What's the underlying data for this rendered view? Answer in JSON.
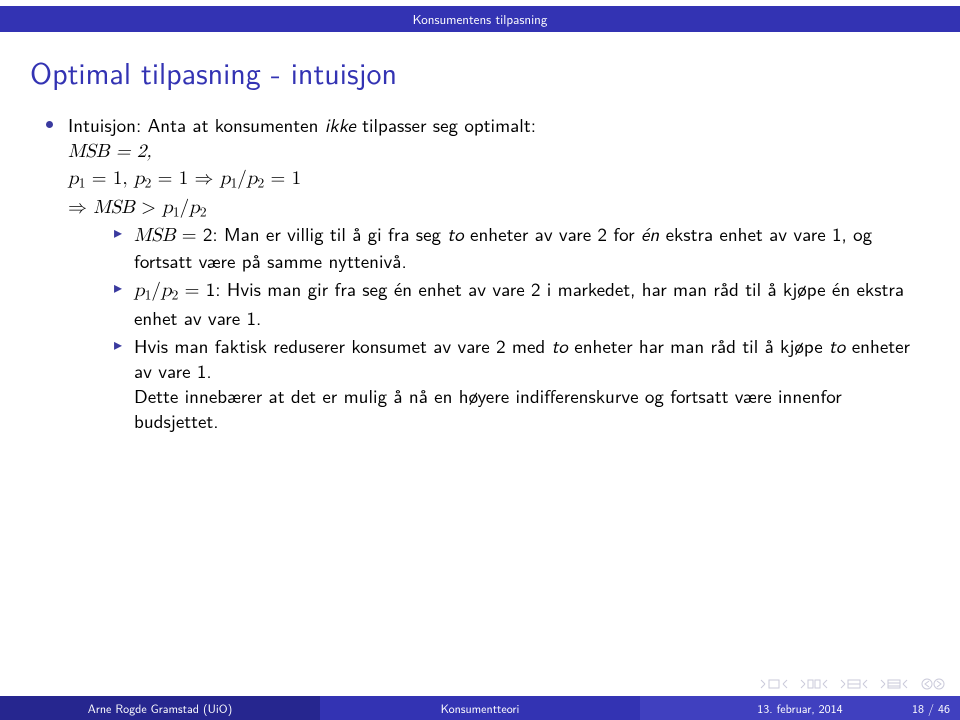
{
  "colors": {
    "structure": "#3333b3",
    "footer_left": "#26268f",
    "footer_mid": "#3333b3",
    "footer_right": "#4040bf",
    "bullet": "#3a3a9f",
    "nav_icon": "#c3c3d4",
    "nav_circle": "#c9c9c9"
  },
  "header": {
    "section": "Konsumentens tilpasning"
  },
  "title": "Optimal tilpasning - intuisjon",
  "bullets": {
    "b1_pre": "Intuisjon: Anta at konsumenten ",
    "b1_em": "ikke",
    "b1_post": " tilpasser seg optimalt:",
    "eq1": "MSB = 2,",
    "eq2_a": "p",
    "eq2_b": " = 1, ",
    "eq2_c": "p",
    "eq2_d": " = 1 ⇒ ",
    "eq2_e": "p",
    "eq2_f": "/",
    "eq2_g": "p",
    "eq2_h": " = 1",
    "eq3_a": "⇒ ",
    "eq3_b": "MSB",
    "eq3_c": " > ",
    "eq3_d": "p",
    "eq3_e": "/",
    "eq3_f": "p",
    "s1_a": "MSB",
    "s1_b": " = 2: Man er villig til å gi fra seg ",
    "s1_em1": "to",
    "s1_c": " enheter av vare 2 for ",
    "s1_em2": "én",
    "s1_d": " ekstra enhet av vare 1, og fortsatt være på samme nyttenivå.",
    "s2_a": "p",
    "s2_b": "/",
    "s2_c": "p",
    "s2_d": " = 1: Hvis man gir fra seg én enhet av vare 2 i markedet, har man råd til å kjøpe én ekstra enhet av vare 1.",
    "s3_a": "Hvis man faktisk reduserer konsumet av vare 2 med ",
    "s3_em1": "to",
    "s3_b": " enheter har man råd til å kjøpe ",
    "s3_em2": "to",
    "s3_c": " enheter av vare 1.",
    "s3_line2": "Dette innebærer at det er mulig å nå en høyere indifferenskurve og fortsatt være innenfor budsjettet."
  },
  "footer": {
    "author": "Arne Rogde Gramstad (UiO)",
    "title": "Konsumentteori",
    "date": "13. februar, 2014",
    "page": "18 / 46"
  }
}
